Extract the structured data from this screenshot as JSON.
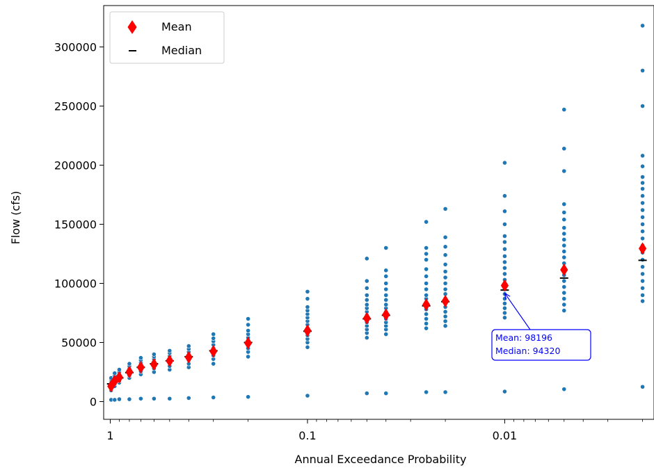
{
  "chart_data": {
    "type": "scatter",
    "xlabel": "Annual Exceedance Probability",
    "ylabel": "Flow (cfs)",
    "x_scale": "log",
    "x_inverted": true,
    "xlim": [
      1.08,
      0.00175
    ],
    "ylim": [
      -15000,
      335000
    ],
    "x_ticks": [
      {
        "value": 1,
        "label": "1"
      },
      {
        "value": 0.1,
        "label": "0.1"
      },
      {
        "value": 0.01,
        "label": "0.01"
      }
    ],
    "y_ticks": [
      0,
      50000,
      100000,
      150000,
      200000,
      250000,
      300000
    ],
    "grid": false,
    "legend": {
      "position": "top-left",
      "entries": [
        {
          "label": "Mean",
          "marker": "red-diamond"
        },
        {
          "label": "Median",
          "marker": "black-dash"
        }
      ]
    },
    "colors": {
      "points": "#1f77b4",
      "mean": "#ff0000",
      "median": "#000000",
      "annotation": "#0000ff"
    },
    "aep": [
      0.99,
      0.95,
      0.9,
      0.8,
      0.7,
      0.6,
      0.5,
      0.4,
      0.3,
      0.2,
      0.1,
      0.05,
      0.04,
      0.025,
      0.02,
      0.01,
      0.005,
      0.002
    ],
    "means": [
      13000,
      17500,
      20500,
      25000,
      29000,
      31500,
      34500,
      37500,
      42500,
      49500,
      60000,
      70500,
      73500,
      82000,
      85000,
      98196,
      111500,
      129500
    ],
    "medians": [
      15000,
      17500,
      20000,
      24500,
      29000,
      32000,
      34500,
      38000,
      43000,
      50000,
      59500,
      70000,
      73000,
      81000,
      84500,
      94320,
      104500,
      119500
    ],
    "points": [
      [
        1500,
        9500,
        11000,
        13000,
        14000,
        15000,
        16000,
        17000,
        18000,
        19000,
        20000
      ],
      [
        1500,
        13000,
        15000,
        16500,
        17500,
        18500,
        19500,
        20500,
        22000,
        24000
      ],
      [
        2000,
        16000,
        17500,
        19000,
        20500,
        22000,
        23500,
        25000,
        27000
      ],
      [
        2000,
        20000,
        22000,
        24000,
        25500,
        27000,
        28500,
        30000,
        32000
      ],
      [
        2500,
        23000,
        25500,
        27500,
        29000,
        31000,
        33000,
        35000,
        37000
      ],
      [
        2500,
        25000,
        28000,
        30000,
        32000,
        34000,
        36000,
        38000,
        40000
      ],
      [
        2500,
        27000,
        30000,
        32500,
        34500,
        36500,
        38500,
        41000,
        43000
      ],
      [
        3000,
        29000,
        32000,
        35000,
        37500,
        39500,
        42000,
        44500,
        47000
      ],
      [
        3500,
        32000,
        36000,
        39000,
        42000,
        45000,
        48000,
        51000,
        53500,
        57000
      ],
      [
        4000,
        38000,
        42000,
        45000,
        48000,
        51000,
        54000,
        57000,
        60000,
        65000,
        70000
      ],
      [
        5000,
        46000,
        50000,
        53000,
        56000,
        59000,
        62000,
        65000,
        68000,
        71000,
        74000,
        77000,
        80000,
        87000,
        93000
      ],
      [
        7000,
        54000,
        58000,
        61000,
        64000,
        67000,
        70000,
        73000,
        76000,
        79000,
        82000,
        86000,
        90000,
        96000,
        102000,
        121000
      ],
      [
        7000,
        57000,
        61000,
        64000,
        67000,
        70000,
        73000,
        76000,
        79000,
        82000,
        86000,
        90000,
        95000,
        100000,
        106000,
        111000,
        130000
      ],
      [
        8000,
        62000,
        66000,
        70000,
        74000,
        78000,
        81000,
        84000,
        87000,
        90000,
        95000,
        100000,
        106000,
        112000,
        120000,
        125000,
        130000,
        152000
      ],
      [
        8000,
        64000,
        68000,
        72000,
        76000,
        80000,
        84000,
        87000,
        91000,
        95000,
        100000,
        105000,
        110000,
        116000,
        124000,
        131000,
        139000,
        163000
      ],
      [
        8500,
        71000,
        75000,
        79000,
        83000,
        87000,
        91000,
        95000,
        99000,
        103000,
        108000,
        113000,
        118000,
        123000,
        129000,
        135000,
        140000,
        150000,
        161000,
        174000,
        202000
      ],
      [
        10500,
        77000,
        82000,
        87000,
        92000,
        97000,
        102000,
        107000,
        112000,
        117000,
        122000,
        127000,
        132000,
        137000,
        142000,
        147000,
        154000,
        160000,
        167000,
        195000,
        214000,
        247000
      ],
      [
        12500,
        85000,
        90000,
        96000,
        102000,
        108000,
        114000,
        120000,
        126000,
        132000,
        138000,
        144000,
        150000,
        156000,
        162000,
        168000,
        174000,
        180000,
        185000,
        190000,
        199000,
        208000,
        250000,
        280000,
        318000
      ]
    ],
    "annotation": {
      "target_aep": 0.01,
      "line1": "Mean: 98196",
      "line2": "Median: 94320"
    }
  }
}
